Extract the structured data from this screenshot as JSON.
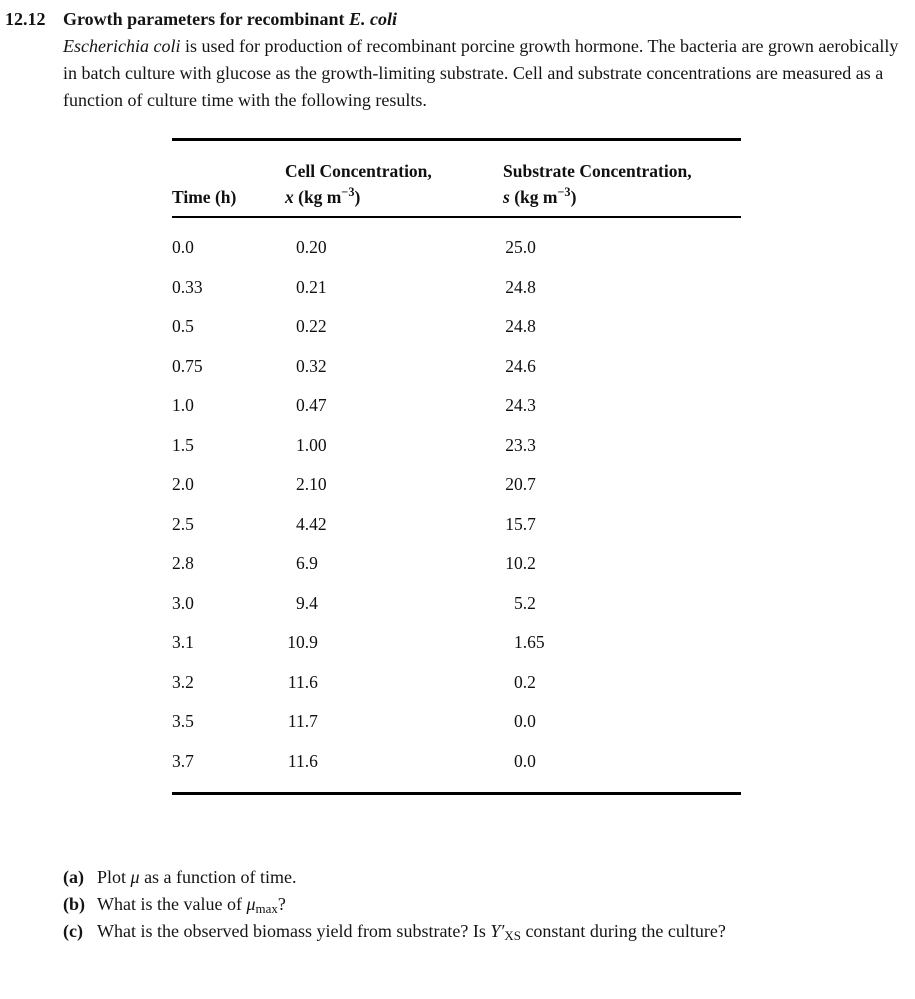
{
  "heading": {
    "number": "12.12",
    "title": "Growth parameters for recombinant ",
    "title_italic": "E. coli"
  },
  "intro": {
    "italic_lead": "Escherichia coli",
    "text": " is used for production of recombinant porcine growth hormone. The bacteria are grown aerobically in batch culture with glucose as the growth-limiting substrate. Cell and substrate concentrations are measured as a function of culture time with the following results."
  },
  "table": {
    "headers": {
      "time": "Time (h)",
      "cell_line1": "Cell Concentration,",
      "cell_var": "x",
      "substrate_line1": "Substrate Concentration,",
      "substrate_var": "s",
      "unit_pre": " (kg m",
      "unit_sup": "−3",
      "unit_post": ")"
    },
    "rows": [
      {
        "time": "0.0",
        "x": "0.20",
        "s": "25.0"
      },
      {
        "time": "0.33",
        "x": "0.21",
        "s": "24.8"
      },
      {
        "time": "0.5",
        "x": "0.22",
        "s": "24.8"
      },
      {
        "time": "0.75",
        "x": "0.32",
        "s": "24.6"
      },
      {
        "time": "1.0",
        "x": "0.47",
        "s": "24.3"
      },
      {
        "time": "1.5",
        "x": "1.00",
        "s": "23.3"
      },
      {
        "time": "2.0",
        "x": "2.10",
        "s": "20.7"
      },
      {
        "time": "2.5",
        "x": "4.42",
        "s": "15.7"
      },
      {
        "time": "2.8",
        "x": "6.9",
        "s": "10.2"
      },
      {
        "time": "3.0",
        "x": "9.4",
        "s": "5.2"
      },
      {
        "time": "3.1",
        "x": "10.9",
        "s": "1.65"
      },
      {
        "time": "3.2",
        "x": "11.6",
        "s": "0.2"
      },
      {
        "time": "3.5",
        "x": "11.7",
        "s": "0.0"
      },
      {
        "time": "3.7",
        "x": "11.6",
        "s": "0.0"
      }
    ]
  },
  "questions": [
    {
      "id": "a",
      "label": "(a)",
      "pre": "Plot ",
      "sym": "μ",
      "sub": "",
      "post": " as a function of time."
    },
    {
      "id": "b",
      "label": "(b)",
      "pre": "What is the value of ",
      "sym": "μ",
      "sub": "max",
      "post": "?"
    },
    {
      "id": "c",
      "label": "(c)",
      "pre": "What is the observed biomass yield from substrate? Is ",
      "sym": "Y′",
      "sub": "XS",
      "post": " constant during the culture?"
    }
  ]
}
